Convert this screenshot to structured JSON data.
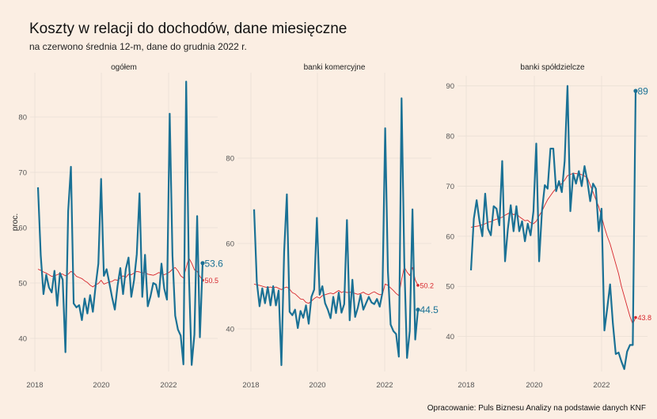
{
  "title": "Koszty w relacji do dochodów, dane miesięczne",
  "subtitle": "na czerwono średnia 12-m, dane do grudnia 2022 r.",
  "caption": "Opracowanie: Puls Biznesu Analizy na podstawie danych KNF",
  "colors": {
    "series": "#1a7195",
    "average": "#d7262c",
    "background": "#fbeee3",
    "grid": "#eadfd5"
  },
  "chart_data": [
    {
      "type": "line",
      "panel_title": "ogółem",
      "ylabel": "proc.",
      "x_ticks": [
        "2018",
        "2020",
        "2022"
      ],
      "y_ticks": [
        40,
        50,
        60,
        70,
        80
      ],
      "ylim": [
        34,
        88
      ],
      "end_labels": {
        "series": "53.6",
        "average": "50.5"
      },
      "series": [
        {
          "values": [
            67.3,
            55,
            48,
            51.5,
            49.2,
            48.3,
            52.2,
            45.9,
            51.8,
            50.6,
            37.5,
            63,
            71,
            46.3,
            45.6,
            46,
            43.3,
            47.2,
            44.5,
            47.8,
            44.8,
            49.5,
            53.5,
            68.8,
            51.3,
            52.5,
            50,
            47.4,
            45.2,
            49.5,
            52.7,
            48,
            52.5,
            54.6,
            47.5,
            50.5,
            55.2,
            66.2,
            47.5,
            55.1,
            45.8,
            47.6,
            50,
            49.7,
            47.5,
            53.5,
            49,
            47,
            80.6,
            55,
            44.1,
            41.6,
            40.5,
            35.3,
            86.4,
            51.5,
            35.2,
            40.7,
            62.1,
            40.2,
            53.6
          ]
        },
        {
          "values": [
            52.5,
            52.3,
            52,
            51.8,
            51.5,
            51.2,
            51.3,
            51.5,
            51.7,
            51.6,
            51.3,
            51.6,
            52.1,
            51.8,
            51.2,
            51,
            50.8,
            50.4,
            50.1,
            49.6,
            49.3,
            49.7,
            49.9,
            50.5,
            49.8,
            50,
            50.2,
            50.3,
            50.6,
            50.5,
            50.9,
            51.3,
            51,
            51.6,
            51.5,
            51.8,
            52.1,
            52,
            51.8,
            52,
            51.6,
            51.5,
            51.4,
            51.6,
            51.9,
            51.7,
            51.5,
            51.7,
            52,
            52.5,
            52.8,
            52.2,
            51.3,
            50.9,
            52.8,
            54.5,
            53.6,
            52.4,
            52.1,
            51.2,
            50.5
          ]
        }
      ]
    },
    {
      "type": "line",
      "panel_title": "banki komercyjne",
      "x_ticks": [
        "2018",
        "2020",
        "2022"
      ],
      "y_ticks": [
        40,
        60,
        80
      ],
      "ylim": [
        30,
        100
      ],
      "end_labels": {
        "series": "44.5",
        "average": "50.2"
      },
      "series": [
        {
          "values": [
            68,
            51,
            45.3,
            49.5,
            46,
            49.8,
            45.5,
            50,
            45.5,
            49,
            31.5,
            58,
            71.5,
            44,
            43.2,
            44.5,
            40.2,
            44.2,
            42.6,
            45.5,
            41.2,
            47.5,
            49.2,
            66,
            48,
            50,
            46,
            44.5,
            42.5,
            47.5,
            43.7,
            48.5,
            43.8,
            45.8,
            65.5,
            42,
            51.5,
            42.8,
            45,
            48,
            44.5,
            46,
            47.5,
            46.2,
            45.8,
            47,
            45.2,
            48.5,
            87,
            53.5,
            41,
            39.5,
            38.8,
            33.5,
            94,
            55.7,
            33.2,
            39.5,
            68,
            37.5,
            44.5
          ]
        },
        {
          "values": [
            50.5,
            50.3,
            50.2,
            50,
            49.8,
            49.7,
            49.8,
            49.6,
            49.8,
            49.5,
            49.2,
            49.6,
            49.8,
            49.3,
            48.5,
            48.2,
            47.6,
            47,
            46.9,
            46.2,
            46,
            46.5,
            47.1,
            47.5,
            47.2,
            47.8,
            48,
            48.2,
            48.4,
            48.2,
            48.6,
            49,
            48.5,
            48.8,
            48.5,
            48.6,
            48.5,
            48.3,
            48.1,
            48.3,
            48.6,
            48.2,
            48,
            48.4,
            48.7,
            48.3,
            48,
            48.1,
            50.5,
            50.2,
            49.6,
            49,
            48.3,
            47.8,
            51.5,
            54.5,
            53.3,
            52.5,
            54.4,
            51.5,
            50.2
          ]
        }
      ]
    },
    {
      "type": "line",
      "panel_title": "banki spółdzielcze",
      "x_ticks": [
        "2018",
        "2020",
        "2022"
      ],
      "y_ticks": [
        40,
        50,
        60,
        70,
        80,
        90
      ],
      "ylim": [
        33,
        92
      ],
      "end_labels": {
        "series": "89",
        "average": "43.8"
      },
      "series": [
        {
          "values": [
            53.2,
            63.5,
            67.2,
            63,
            60,
            68.5,
            61.5,
            60.2,
            66,
            65.5,
            62.2,
            75,
            55,
            61.5,
            66.2,
            61,
            66,
            61,
            63,
            59,
            62.5,
            60.2,
            65,
            78.5,
            55,
            65,
            70.2,
            69.5,
            77.5,
            77.5,
            69,
            71,
            68.8,
            75,
            90,
            65,
            72.5,
            70.5,
            73,
            70,
            74,
            71,
            67,
            70.5,
            69.5,
            61,
            65.5,
            41.2,
            45.6,
            50.4,
            42.5,
            36.5,
            36.8,
            35,
            33.5,
            37,
            38.3,
            38.3,
            89
          ]
        },
        {
          "values": [
            61.8,
            61.9,
            62,
            62.1,
            62.3,
            62.5,
            62.8,
            62.9,
            63.2,
            63.4,
            63.6,
            63.8,
            64.2,
            64.5,
            64.8,
            64.3,
            64.6,
            63.9,
            63.5,
            63.1,
            63.2,
            62.7,
            62.5,
            63,
            64.1,
            65,
            66.2,
            67.3,
            68.1,
            68.9,
            69.6,
            70.2,
            70.5,
            71.2,
            72.1,
            72.3,
            72.6,
            72.5,
            72.4,
            72.3,
            72,
            71.7,
            70.2,
            68.8,
            67.3,
            65.9,
            64,
            61.8,
            60,
            58.5,
            56.5,
            54.5,
            52.5,
            50,
            48,
            46,
            44,
            42.5,
            43.8
          ]
        }
      ]
    }
  ]
}
